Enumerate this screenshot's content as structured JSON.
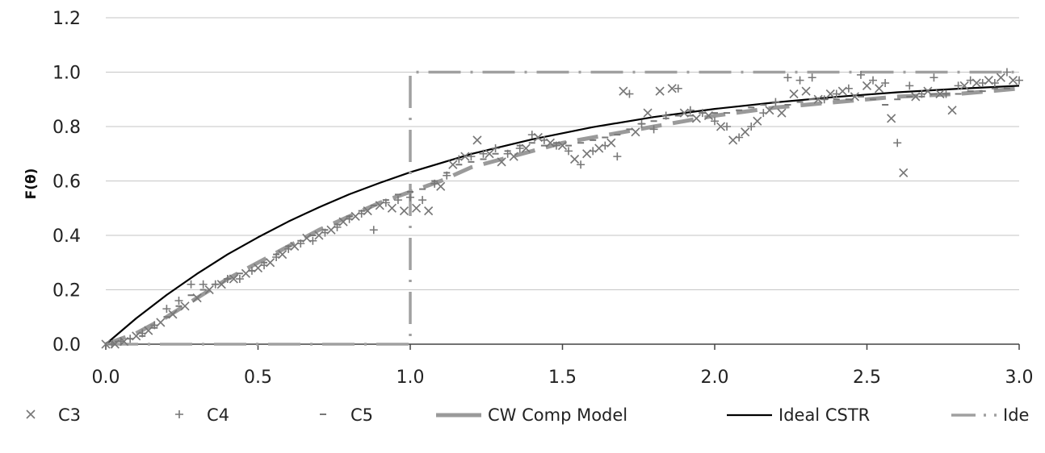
{
  "chart_data": {
    "type": "scatter",
    "title": "",
    "xlabel": "",
    "ylabel": "F(θ)",
    "xlim": [
      0,
      3
    ],
    "ylim": [
      0,
      1.2
    ],
    "x_ticks": [
      "0.0",
      "0.5",
      "1.0",
      "1.5",
      "2.0",
      "2.5",
      "3.0"
    ],
    "y_ticks": [
      "0.0",
      "0.2",
      "0.4",
      "0.6",
      "0.8",
      "1.0",
      "1.2"
    ],
    "grid": "horizontal",
    "legend_position": "bottom",
    "colors": {
      "markers": "#777777",
      "model": "#9a9a9a",
      "ideal_cstr": "#000000",
      "ideal_pfr": "#a0a0a0"
    },
    "series": [
      {
        "name": "C3",
        "marker": "x",
        "x": [
          0.0,
          0.03,
          0.06,
          0.1,
          0.14,
          0.18,
          0.22,
          0.26,
          0.3,
          0.34,
          0.38,
          0.42,
          0.46,
          0.5,
          0.54,
          0.58,
          0.62,
          0.66,
          0.7,
          0.74,
          0.78,
          0.82,
          0.86,
          0.9,
          0.94,
          0.98,
          1.02,
          1.06,
          1.1,
          1.14,
          1.18,
          1.22,
          1.26,
          1.3,
          1.34,
          1.38,
          1.42,
          1.46,
          1.5,
          1.54,
          1.58,
          1.62,
          1.66,
          1.7,
          1.74,
          1.78,
          1.82,
          1.86,
          1.9,
          1.94,
          1.98,
          2.02,
          2.06,
          2.1,
          2.14,
          2.18,
          2.22,
          2.26,
          2.3,
          2.34,
          2.38,
          2.42,
          2.46,
          2.5,
          2.54,
          2.58,
          2.62,
          2.66,
          2.7,
          2.74,
          2.78,
          2.82,
          2.86,
          2.9,
          2.94,
          2.98
        ],
        "y": [
          0.0,
          0.0,
          0.01,
          0.03,
          0.05,
          0.08,
          0.11,
          0.14,
          0.17,
          0.2,
          0.22,
          0.24,
          0.26,
          0.28,
          0.3,
          0.33,
          0.36,
          0.39,
          0.4,
          0.42,
          0.45,
          0.47,
          0.49,
          0.51,
          0.5,
          0.49,
          0.5,
          0.49,
          0.58,
          0.66,
          0.69,
          0.75,
          0.7,
          0.67,
          0.69,
          0.72,
          0.76,
          0.74,
          0.73,
          0.68,
          0.7,
          0.72,
          0.74,
          0.93,
          0.78,
          0.85,
          0.93,
          0.94,
          0.85,
          0.83,
          0.84,
          0.8,
          0.75,
          0.78,
          0.82,
          0.86,
          0.85,
          0.92,
          0.93,
          0.9,
          0.92,
          0.93,
          0.91,
          0.95,
          0.94,
          0.83,
          0.63,
          0.91,
          0.93,
          0.92,
          0.86,
          0.95,
          0.96,
          0.97,
          0.98,
          0.97
        ]
      },
      {
        "name": "C4",
        "marker": "+",
        "x": [
          0.02,
          0.05,
          0.08,
          0.12,
          0.16,
          0.2,
          0.24,
          0.28,
          0.32,
          0.36,
          0.4,
          0.44,
          0.48,
          0.52,
          0.56,
          0.6,
          0.64,
          0.68,
          0.72,
          0.76,
          0.8,
          0.84,
          0.88,
          0.92,
          0.96,
          1.0,
          1.04,
          1.08,
          1.12,
          1.16,
          1.2,
          1.24,
          1.28,
          1.32,
          1.36,
          1.4,
          1.44,
          1.48,
          1.52,
          1.56,
          1.6,
          1.64,
          1.68,
          1.72,
          1.76,
          1.8,
          1.84,
          1.88,
          1.92,
          1.96,
          2.0,
          2.04,
          2.08,
          2.12,
          2.16,
          2.2,
          2.24,
          2.28,
          2.32,
          2.36,
          2.4,
          2.44,
          2.48,
          2.52,
          2.56,
          2.6,
          2.64,
          2.68,
          2.72,
          2.76,
          2.8,
          2.84,
          2.88,
          2.92,
          2.96,
          3.0
        ],
        "y": [
          0.0,
          0.01,
          0.02,
          0.04,
          0.07,
          0.13,
          0.16,
          0.22,
          0.22,
          0.22,
          0.24,
          0.24,
          0.27,
          0.29,
          0.32,
          0.35,
          0.37,
          0.38,
          0.41,
          0.43,
          0.46,
          0.48,
          0.42,
          0.52,
          0.53,
          0.54,
          0.53,
          0.59,
          0.62,
          0.68,
          0.69,
          0.7,
          0.72,
          0.7,
          0.72,
          0.77,
          0.75,
          0.73,
          0.71,
          0.66,
          0.71,
          0.73,
          0.69,
          0.92,
          0.81,
          0.79,
          0.84,
          0.94,
          0.86,
          0.85,
          0.82,
          0.8,
          0.76,
          0.8,
          0.85,
          0.89,
          0.98,
          0.97,
          0.98,
          0.9,
          0.92,
          0.94,
          0.99,
          0.97,
          0.96,
          0.74,
          0.95,
          0.92,
          0.98,
          0.92,
          0.95,
          0.97,
          0.96,
          0.96,
          1.0,
          0.97
        ]
      },
      {
        "name": "C5",
        "marker": "-",
        "x": [
          0.04,
          0.08,
          0.12,
          0.16,
          0.2,
          0.24,
          0.28,
          0.32,
          0.36,
          0.4,
          0.44,
          0.48,
          0.52,
          0.56,
          0.6,
          0.64,
          0.68,
          0.72,
          0.76,
          0.8,
          0.84,
          0.88,
          0.92,
          0.96,
          1.0,
          1.04,
          1.08,
          1.12,
          1.16,
          1.2,
          1.24,
          1.28,
          1.32,
          1.36,
          1.4,
          1.44,
          1.48,
          1.52,
          1.56,
          1.6,
          1.64,
          1.68,
          1.72,
          1.76,
          1.8,
          1.84,
          1.88,
          1.92,
          1.96,
          2.0,
          2.04,
          2.08,
          2.12,
          2.16,
          2.2,
          2.24,
          2.28,
          2.32,
          2.36,
          2.4,
          2.44,
          2.48,
          2.52,
          2.56,
          2.6,
          2.64,
          2.68,
          2.72,
          2.76,
          2.8,
          2.84,
          2.88,
          2.92,
          2.96
        ],
        "y": [
          0.01,
          0.02,
          0.03,
          0.06,
          0.1,
          0.14,
          0.18,
          0.2,
          0.22,
          0.24,
          0.26,
          0.27,
          0.3,
          0.33,
          0.36,
          0.38,
          0.4,
          0.42,
          0.44,
          0.47,
          0.49,
          0.51,
          0.53,
          0.55,
          0.56,
          0.57,
          0.6,
          0.63,
          0.66,
          0.67,
          0.68,
          0.7,
          0.71,
          0.73,
          0.74,
          0.73,
          0.74,
          0.73,
          0.74,
          0.75,
          0.76,
          0.77,
          0.79,
          0.81,
          0.82,
          0.83,
          0.84,
          0.84,
          0.85,
          0.85,
          0.85,
          0.86,
          0.87,
          0.88,
          0.89,
          0.88,
          0.89,
          0.9,
          0.9,
          0.9,
          0.9,
          0.91,
          0.9,
          0.88,
          0.9,
          0.91,
          0.91,
          0.92,
          0.92,
          0.92,
          0.93,
          0.93,
          0.94,
          0.94
        ]
      },
      {
        "name": "CW Comp Model",
        "line": "dashed",
        "x": [
          0.0,
          0.1,
          0.2,
          0.3,
          0.4,
          0.5,
          0.6,
          0.7,
          0.8,
          0.9,
          1.0,
          1.1,
          1.2,
          1.3,
          1.4,
          1.5,
          1.6,
          1.7,
          1.8,
          1.9,
          2.0,
          2.2,
          2.4,
          2.6,
          2.8,
          3.0
        ],
        "y": [
          0.0,
          0.04,
          0.1,
          0.17,
          0.24,
          0.3,
          0.36,
          0.42,
          0.47,
          0.52,
          0.56,
          0.6,
          0.65,
          0.68,
          0.71,
          0.74,
          0.76,
          0.78,
          0.8,
          0.82,
          0.84,
          0.87,
          0.89,
          0.91,
          0.92,
          0.94
        ]
      },
      {
        "name": "Ideal CSTR",
        "line": "solid",
        "x": [
          0.0,
          0.1,
          0.2,
          0.3,
          0.4,
          0.5,
          0.6,
          0.7,
          0.8,
          0.9,
          1.0,
          1.2,
          1.4,
          1.6,
          1.8,
          2.0,
          2.2,
          2.4,
          2.6,
          2.8,
          3.0
        ],
        "y": [
          0.0,
          0.095,
          0.181,
          0.259,
          0.33,
          0.393,
          0.451,
          0.503,
          0.551,
          0.593,
          0.632,
          0.699,
          0.753,
          0.798,
          0.835,
          0.865,
          0.889,
          0.909,
          0.926,
          0.939,
          0.95
        ]
      },
      {
        "name": "Ide",
        "line": "dash-dot",
        "x": [
          0.0,
          1.0,
          1.0,
          3.0
        ],
        "y": [
          0.0,
          0.0,
          1.0,
          1.0
        ]
      }
    ]
  }
}
